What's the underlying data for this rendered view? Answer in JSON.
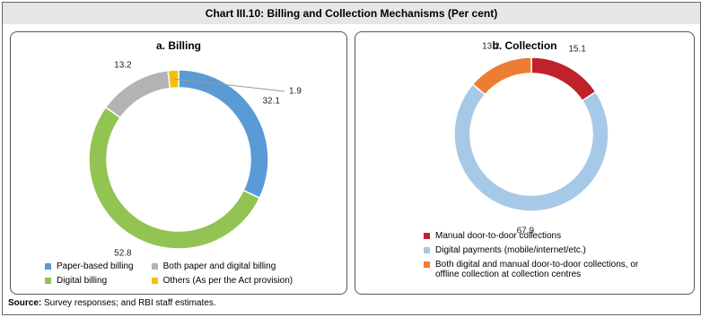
{
  "title": "Chart III.10: Billing and Collection Mechanisms (Per cent)",
  "chart_data": [
    {
      "type": "donut",
      "title": "a. Billing",
      "categories": [
        "Paper-based billing",
        "Digital billing",
        "Both paper and digital billing",
        "Others (As per the Act provision)"
      ],
      "values": [
        32.1,
        52.8,
        13.2,
        1.9
      ],
      "colors": [
        "#5b9bd5",
        "#92c353",
        "#b3b3b3",
        "#f5c000"
      ],
      "legend_columns": 2
    },
    {
      "type": "donut",
      "title": "b. Collection",
      "categories": [
        "Manual door-to-door collections",
        "Digital payments (mobile/internet/etc.)",
        "Both digital and manual door-to-door collections, or offline collection at collection centres"
      ],
      "values": [
        15.1,
        67.9,
        13.2
      ],
      "colors": [
        "#c0222b",
        "#a7c9e8",
        "#ed7d31"
      ],
      "legend_columns": 1
    }
  ],
  "source": {
    "label": "Source:",
    "text": "Survey responses; and RBI staff estimates."
  }
}
